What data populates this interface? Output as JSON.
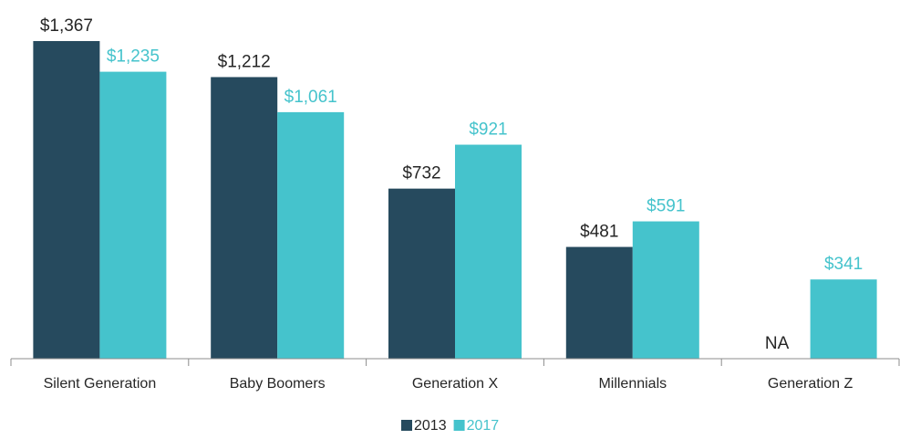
{
  "chart_data": {
    "type": "bar",
    "categories": [
      "Silent Generation",
      "Baby Boomers",
      "Generation X",
      "Millennials",
      "Generation Z"
    ],
    "series": [
      {
        "name": "2013",
        "color": "#264a5e",
        "values": [
          1367,
          1212,
          732,
          481,
          null
        ],
        "value_labels": [
          "$1,367",
          "$1,212",
          "$732",
          "$481",
          "NA"
        ]
      },
      {
        "name": "2017",
        "color": "#45c3cc",
        "values": [
          1235,
          1061,
          921,
          591,
          341
        ],
        "value_labels": [
          "$1,235",
          "$1,061",
          "$921",
          "$591",
          "$341"
        ]
      }
    ]
  }
}
